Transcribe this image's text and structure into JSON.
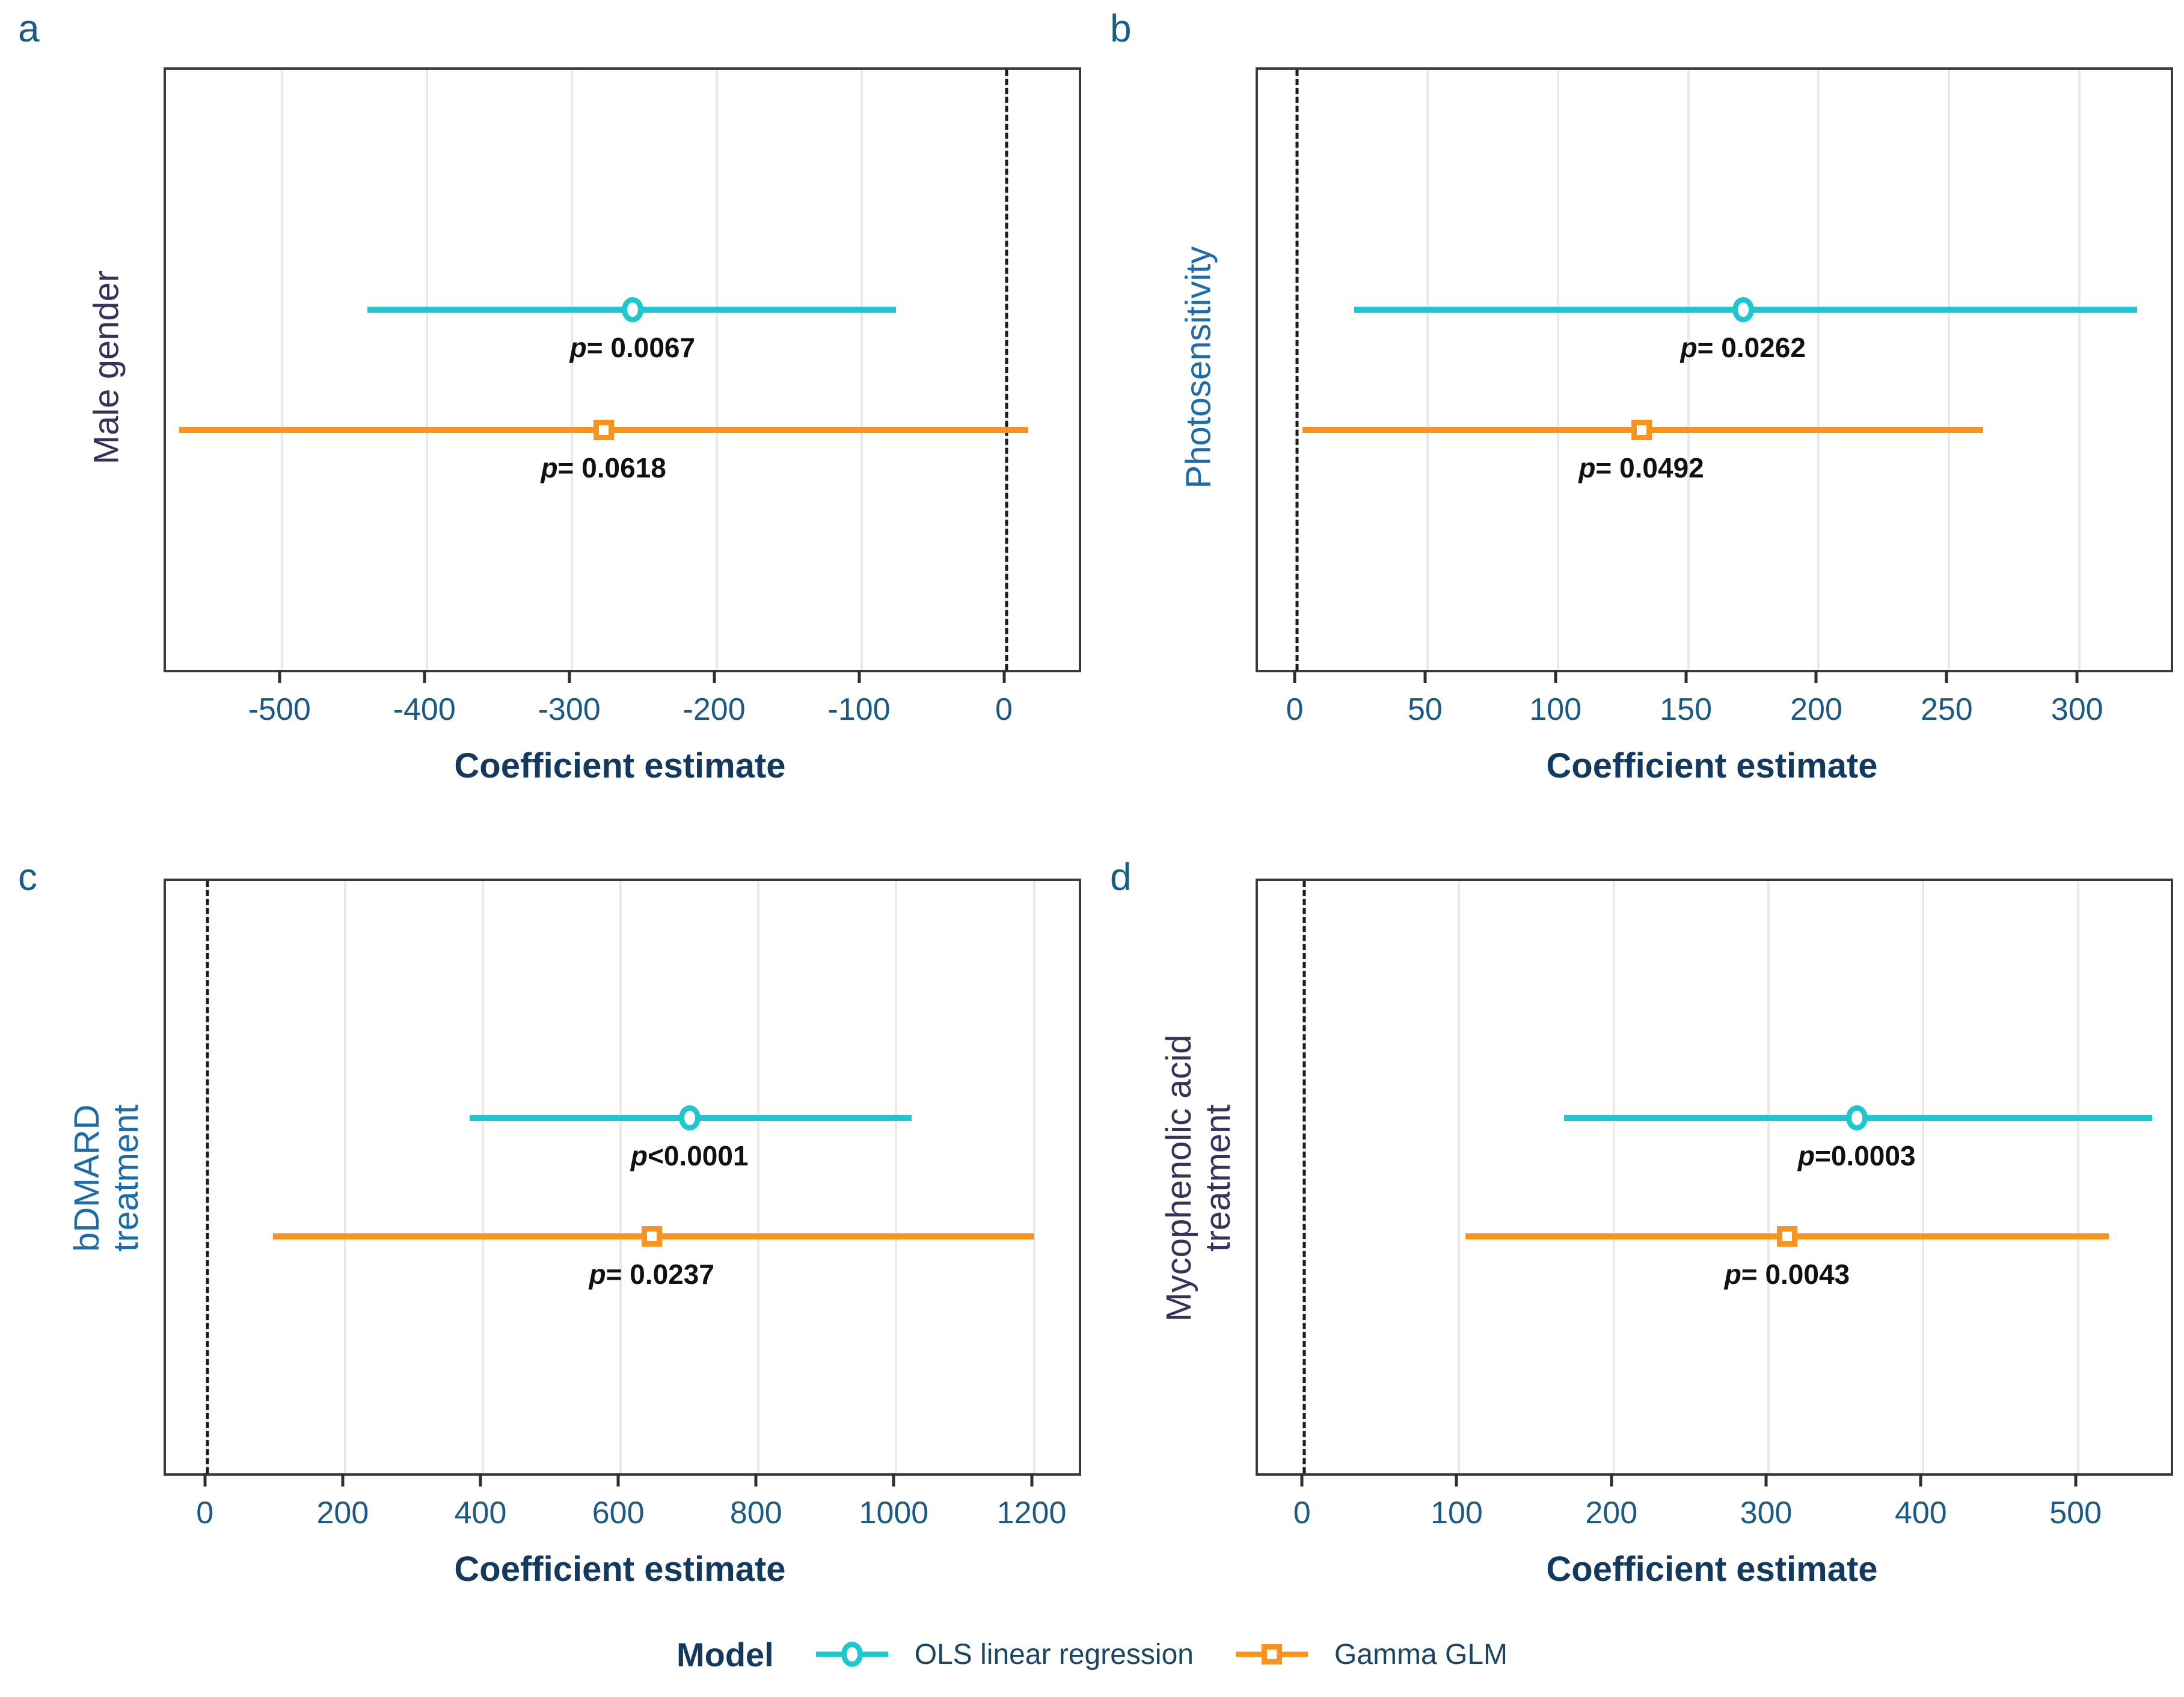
{
  "chart_data": [
    {
      "panel": "a",
      "type": "scatter",
      "ylabel": "Male gender",
      "ylabel_color": "#33335C",
      "xlabel": "Coefficient estimate",
      "xlim": [
        -580,
        50
      ],
      "xticks": [
        -500,
        -400,
        -300,
        -200,
        -100,
        0
      ],
      "xtick_labels": [
        "-500",
        "-400",
        "-300",
        "-200",
        "-100",
        "0"
      ],
      "zero_line": 0,
      "grid": true,
      "series": [
        {
          "name": "OLS linear regression",
          "marker": "circle",
          "color": "#1EC7CE",
          "estimate": -258,
          "ci_low": -441,
          "ci_high": -76,
          "p_prefix": "p",
          "p_text": "= 0.0067",
          "y_pct": 40
        },
        {
          "name": "Gamma GLM",
          "marker": "square",
          "color": "#F8941E",
          "estimate": -278,
          "ci_low": -571,
          "ci_high": 15,
          "p_prefix": "p",
          "p_text": "= 0.0618",
          "y_pct": 60
        }
      ]
    },
    {
      "panel": "b",
      "type": "scatter",
      "ylabel": "Photosensitivity",
      "ylabel_color": "#1B6CA8",
      "xlabel": "Coefficient estimate",
      "xlim": [
        -15,
        335
      ],
      "xticks": [
        0,
        50,
        100,
        150,
        200,
        250,
        300
      ],
      "xtick_labels": [
        "0",
        "50",
        "100",
        "150",
        "200",
        "250",
        "300"
      ],
      "zero_line": 0,
      "grid": true,
      "series": [
        {
          "name": "OLS linear regression",
          "marker": "circle",
          "color": "#1EC7CE",
          "estimate": 171,
          "ci_low": 22,
          "ci_high": 322,
          "p_prefix": "p",
          "p_text": "= 0.0262",
          "y_pct": 40
        },
        {
          "name": "Gamma GLM",
          "marker": "square",
          "color": "#F8941E",
          "estimate": 132,
          "ci_low": 2,
          "ci_high": 263,
          "p_prefix": "p",
          "p_text": "= 0.0492",
          "y_pct": 60
        }
      ]
    },
    {
      "panel": "c",
      "type": "scatter",
      "ylabel": "bDMARD\ntreatment",
      "ylabel_color": "#1B6CA8",
      "xlabel": "Coefficient estimate",
      "xlim": [
        -60,
        1265
      ],
      "xticks": [
        0,
        200,
        400,
        600,
        800,
        1000,
        1200
      ],
      "xtick_labels": [
        "0",
        "200",
        "400",
        "600",
        "800",
        "1000",
        "1200"
      ],
      "zero_line": 0,
      "grid": true,
      "series": [
        {
          "name": "OLS linear regression",
          "marker": "circle",
          "color": "#1EC7CE",
          "estimate": 700,
          "ci_low": 381,
          "ci_high": 1022,
          "p_prefix": "p",
          "p_text": "<0.0001",
          "y_pct": 40
        },
        {
          "name": "Gamma GLM",
          "marker": "square",
          "color": "#F8941E",
          "estimate": 645,
          "ci_low": 95,
          "ci_high": 1200,
          "p_prefix": "p",
          "p_text": "= 0.0237",
          "y_pct": 60
        }
      ]
    },
    {
      "panel": "d",
      "type": "scatter",
      "ylabel": "Mycophenolic acid\ntreatment",
      "ylabel_color": "#33335C",
      "xlabel": "Coefficient estimate",
      "xlim": [
        -30,
        560
      ],
      "xticks": [
        0,
        100,
        200,
        300,
        400,
        500
      ],
      "xtick_labels": [
        "0",
        "100",
        "200",
        "300",
        "400",
        "500"
      ],
      "zero_line": 0,
      "grid": true,
      "series": [
        {
          "name": "OLS linear regression",
          "marker": "circle",
          "color": "#1EC7CE",
          "estimate": 357,
          "ci_low": 168,
          "ci_high": 548,
          "p_prefix": "p",
          "p_text": "=0.0003",
          "y_pct": 40
        },
        {
          "name": "Gamma GLM",
          "marker": "square",
          "color": "#F8941E",
          "estimate": 312,
          "ci_low": 104,
          "ci_high": 520,
          "p_prefix": "p",
          "p_text": "= 0.0043",
          "y_pct": 60
        }
      ]
    }
  ],
  "legend": {
    "title": "Model",
    "items": [
      {
        "label": "OLS linear regression",
        "color": "#1EC7CE",
        "marker": "circle"
      },
      {
        "label": "Gamma GLM",
        "color": "#F8941E",
        "marker": "square"
      }
    ],
    "position": "bottom-center"
  },
  "colors": {
    "ols_cyan": "#1EC7CE",
    "gamma_orange": "#F8941E",
    "tick_label": "#1B5A85",
    "axis_title": "#14395E",
    "panel_letter": "#175E87",
    "gridline": "#E9E9E9",
    "plot_border": "#3A3A3A",
    "zero_dashed_line": "#1A1A1A",
    "p_value_text": "#111111",
    "legend_text": "#1C4564"
  }
}
